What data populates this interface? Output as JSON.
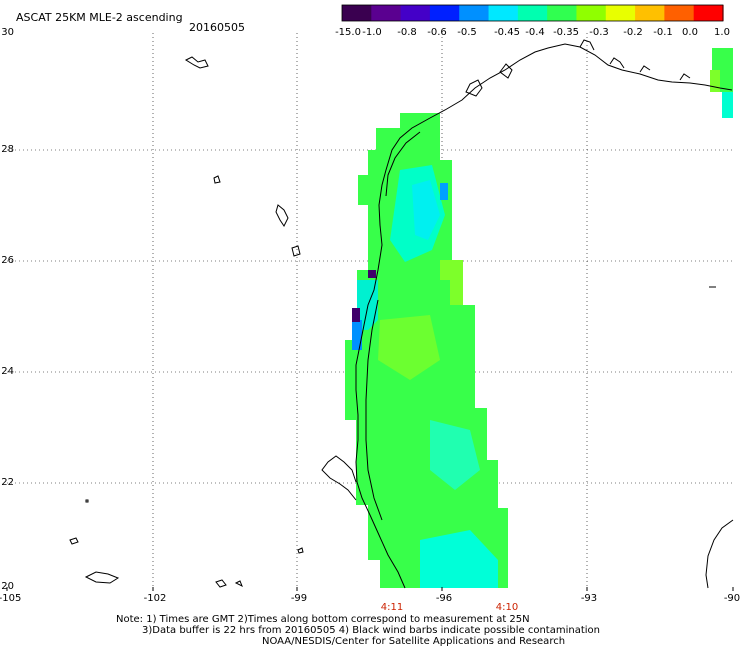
{
  "header": {
    "title": "ASCAT 25KM MLE-2 ascending",
    "date": "20160505"
  },
  "colorbar": {
    "labels": [
      "-15.0",
      "-1.0",
      "-0.8",
      "-0.6",
      "-0.5",
      "-0.45",
      "-0.4",
      "-0.35",
      "-0.3",
      "-0.2",
      "-0.1",
      "0.0",
      "1.0"
    ],
    "colors": [
      "#3a0050",
      "#5a0090",
      "#4400c8",
      "#0020ff",
      "#0090ff",
      "#00e8ff",
      "#00ffb0",
      "#30ff50",
      "#90ff00",
      "#e8ff00",
      "#ffc000",
      "#ff6000",
      "#ff0000"
    ]
  },
  "axes": {
    "lat_ticks": [
      "30",
      "28",
      "26",
      "24",
      "22",
      "20"
    ],
    "lon_ticks": [
      "-105",
      "-102",
      "-99",
      "-96",
      "-93",
      "-90"
    ]
  },
  "time_labels": [
    "4:11",
    "4:10"
  ],
  "notes": [
    "Note: 1) Times are GMT 2)Times along bottom correspond to measurement at 25N",
    "3)Data buffer is 22 hrs from 20160505 4) Black wind barbs indicate possible contamination",
    "NOAA/NESDIS/Center for Satellite Applications and Research"
  ],
  "swath_colors": {
    "dominant": "#38ff4a",
    "light": "#7dff2a",
    "cyan": "#00ffd0",
    "teal": "#00f0ff",
    "blue": "#0088ff",
    "purple": "#40006a"
  }
}
